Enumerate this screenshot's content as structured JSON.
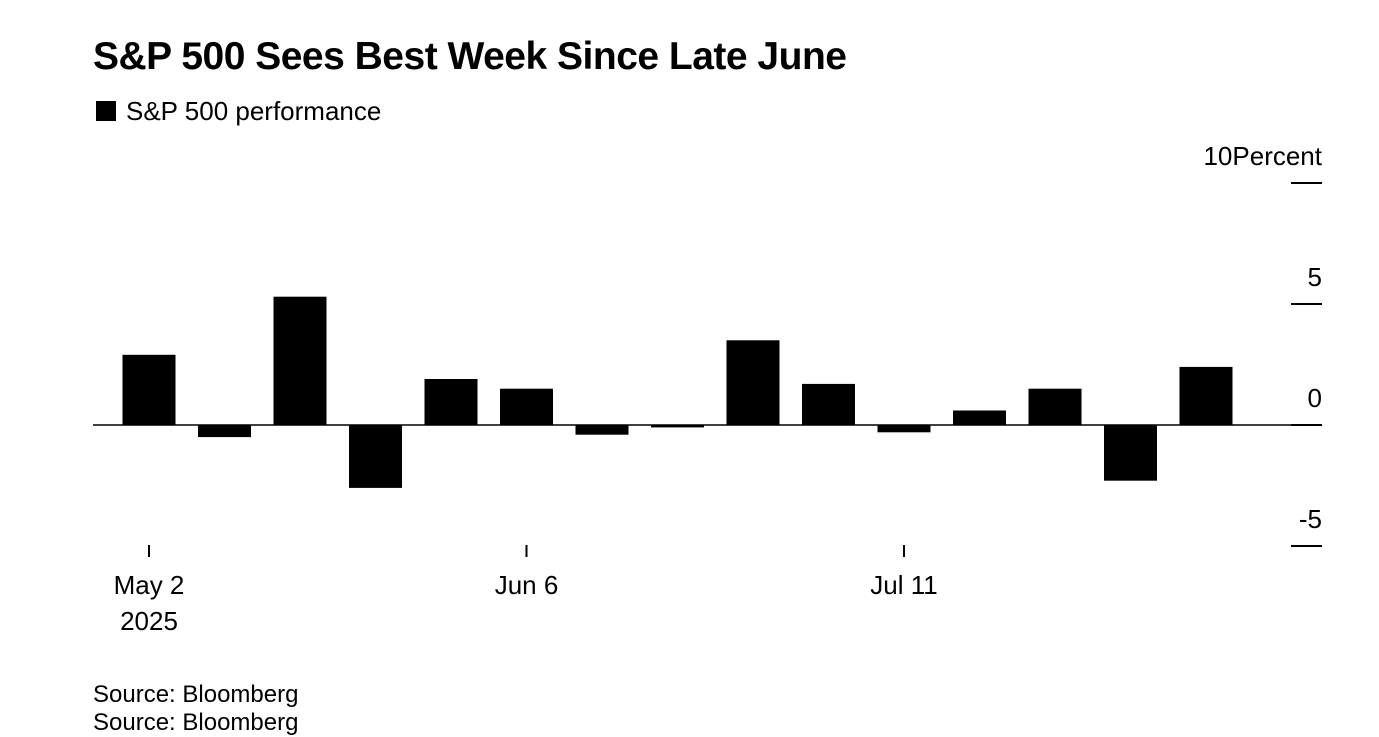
{
  "title": "S&P 500 Sees Best Week Since Late June",
  "legend": {
    "label": "S&P 500 performance",
    "color": "#000000"
  },
  "source_lines": [
    "Source: Bloomberg",
    "Source: Bloomberg"
  ],
  "chart_data": {
    "type": "bar",
    "title": "S&P 500 Sees Best Week Since Late June",
    "series": [
      {
        "name": "S&P 500 performance",
        "color": "#000000",
        "values": [
          2.9,
          -0.5,
          5.3,
          -2.6,
          1.9,
          1.5,
          -0.4,
          -0.1,
          3.5,
          1.7,
          -0.3,
          0.6,
          1.5,
          -2.3,
          2.4
        ]
      }
    ],
    "categories": [
      "2025-05-02",
      "2025-05-09",
      "2025-05-16",
      "2025-05-23",
      "2025-05-30",
      "2025-06-06",
      "2025-06-13",
      "2025-06-20",
      "2025-06-27",
      "2025-07-04",
      "2025-07-11",
      "2025-07-18",
      "2025-07-25",
      "2025-08-01",
      "2025-08-08"
    ],
    "x_ticks": [
      {
        "index": 0,
        "label": "May 2",
        "sublabel": "2025"
      },
      {
        "index": 5,
        "label": "Jun 6",
        "sublabel": ""
      },
      {
        "index": 10,
        "label": "Jul 11",
        "sublabel": ""
      }
    ],
    "y_ticks": [
      10,
      5,
      0,
      -5
    ],
    "y_unit_label": "Percent",
    "ylim": [
      -5,
      10
    ],
    "y_axis_position": "right",
    "grid": false,
    "legend_position": "top-left"
  }
}
